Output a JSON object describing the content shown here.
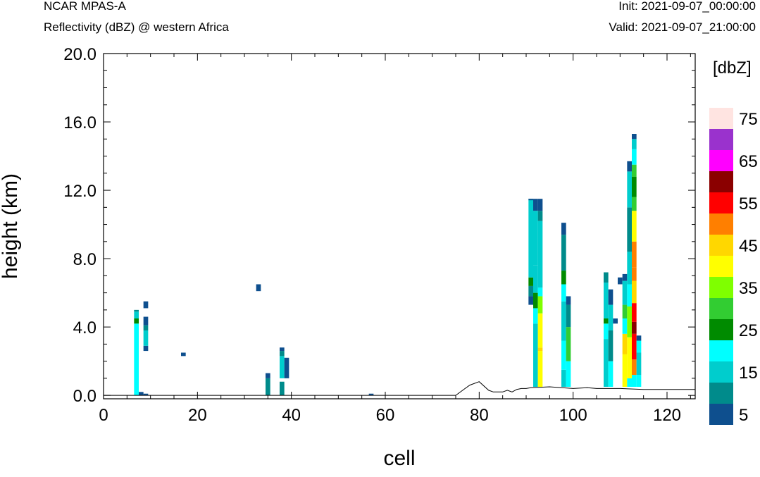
{
  "header": {
    "model": "NCAR MPAS-A",
    "field": "Reflectivity (dBZ) @ western Africa",
    "init": "Init: 2021-09-07_00:00:00",
    "valid": "Valid: 2021-09-07_21:00:00"
  },
  "chart_data": {
    "type": "heatmap",
    "xlabel": "cell",
    "ylabel": "height (km)",
    "xlim": [
      0,
      126
    ],
    "ylim": [
      -0.2,
      20.0
    ],
    "xticks": [
      "0",
      "20",
      "40",
      "60",
      "80",
      "100",
      "120"
    ],
    "yticks": [
      "0.0",
      "4.0",
      "8.0",
      "12.0",
      "16.0",
      "20.0"
    ],
    "grid": false,
    "colorbar": {
      "title": "[dbZ]",
      "labels": [
        "5",
        "15",
        "25",
        "35",
        "45",
        "55",
        "65",
        "75"
      ],
      "levels": [
        5,
        10,
        15,
        20,
        25,
        30,
        35,
        40,
        45,
        50,
        55,
        60,
        65,
        70,
        75
      ],
      "colors": [
        "#0e4f8e",
        "#008b8b",
        "#00cdcd",
        "#00ffff",
        "#008b00",
        "#32cd32",
        "#7fff00",
        "#ffff00",
        "#ffd700",
        "#ff7f00",
        "#ff0000",
        "#8b0000",
        "#ff00ff",
        "#9a32cd",
        "#ffe4e1"
      ]
    },
    "columns": [
      {
        "x": 7,
        "segments": [
          [
            0.0,
            4.2,
            20
          ],
          [
            4.2,
            4.5,
            25
          ],
          [
            4.5,
            4.9,
            15
          ],
          [
            4.9,
            5.0,
            10
          ]
        ]
      },
      {
        "x": 8,
        "segments": [
          [
            0.0,
            0.2,
            5
          ]
        ]
      },
      {
        "x": 9,
        "segments": [
          [
            0.0,
            0.1,
            5
          ],
          [
            2.6,
            2.9,
            5
          ],
          [
            2.9,
            3.8,
            15
          ],
          [
            3.8,
            4.1,
            10
          ],
          [
            4.1,
            4.6,
            5
          ],
          [
            5.1,
            5.5,
            5
          ]
        ]
      },
      {
        "x": 17,
        "segments": [
          [
            2.3,
            2.5,
            5
          ]
        ]
      },
      {
        "x": 33,
        "segments": [
          [
            6.1,
            6.5,
            5
          ]
        ]
      },
      {
        "x": 35,
        "segments": [
          [
            0.0,
            1.0,
            10
          ],
          [
            1.0,
            1.3,
            5
          ]
        ]
      },
      {
        "x": 38,
        "segments": [
          [
            0.0,
            0.8,
            10
          ],
          [
            1.0,
            2.3,
            15
          ],
          [
            2.3,
            2.6,
            10
          ],
          [
            2.6,
            2.8,
            5
          ]
        ]
      },
      {
        "x": 39,
        "segments": [
          [
            1.0,
            2.2,
            5
          ]
        ]
      },
      {
        "x": 57,
        "segments": [
          [
            0.0,
            0.1,
            5
          ]
        ]
      },
      {
        "x": 91,
        "segments": [
          [
            5.3,
            5.8,
            5
          ],
          [
            5.8,
            6.4,
            10
          ],
          [
            6.4,
            6.9,
            25
          ],
          [
            6.9,
            11.5,
            15
          ],
          [
            11.5,
            11.5,
            5
          ]
        ]
      },
      {
        "x": 92,
        "segments": [
          [
            0.5,
            4.2,
            15
          ],
          [
            4.2,
            5.1,
            20
          ],
          [
            5.1,
            6.0,
            25
          ],
          [
            6.0,
            7.6,
            15
          ],
          [
            7.6,
            10.8,
            15
          ],
          [
            10.8,
            11.5,
            5
          ]
        ]
      },
      {
        "x": 93,
        "segments": [
          [
            0.5,
            2.6,
            40
          ],
          [
            2.6,
            2.8,
            45
          ],
          [
            2.8,
            4.8,
            40
          ],
          [
            4.8,
            5.8,
            35
          ],
          [
            5.8,
            6.3,
            20
          ],
          [
            6.3,
            10.2,
            15
          ],
          [
            10.2,
            10.8,
            10
          ],
          [
            10.8,
            11.5,
            5
          ]
        ]
      },
      {
        "x": 98,
        "segments": [
          [
            0.5,
            1.5,
            15
          ],
          [
            1.5,
            3.2,
            20
          ],
          [
            3.2,
            5.5,
            15
          ],
          [
            5.5,
            6.5,
            20
          ],
          [
            6.5,
            7.3,
            25
          ],
          [
            7.3,
            9.4,
            10
          ],
          [
            9.4,
            10.1,
            5
          ]
        ]
      },
      {
        "x": 99,
        "segments": [
          [
            0.5,
            2.0,
            20
          ],
          [
            2.0,
            4.0,
            30
          ],
          [
            4.0,
            5.3,
            10
          ],
          [
            5.3,
            5.8,
            5
          ]
        ]
      },
      {
        "x": 107,
        "segments": [
          [
            0.5,
            3.3,
            15
          ],
          [
            3.3,
            4.2,
            20
          ],
          [
            4.2,
            4.5,
            25
          ],
          [
            4.5,
            6.6,
            15
          ],
          [
            6.6,
            7.2,
            10
          ]
        ]
      },
      {
        "x": 108,
        "segments": [
          [
            0.5,
            2.0,
            20
          ],
          [
            2.0,
            3.8,
            10
          ],
          [
            3.8,
            5.3,
            15
          ],
          [
            5.3,
            6.2,
            5
          ]
        ]
      },
      {
        "x": 109,
        "segments": [
          [
            4.2,
            4.5,
            5
          ]
        ]
      },
      {
        "x": 110,
        "segments": [
          [
            6.5,
            6.9,
            5
          ]
        ]
      },
      {
        "x": 111,
        "segments": [
          [
            0.5,
            2.4,
            40
          ],
          [
            2.4,
            3.6,
            45
          ],
          [
            3.6,
            4.5,
            20
          ],
          [
            4.5,
            5.3,
            30
          ],
          [
            5.3,
            6.7,
            15
          ],
          [
            6.7,
            7.1,
            5
          ]
        ]
      },
      {
        "x": 112,
        "segments": [
          [
            0.5,
            1.0,
            20
          ],
          [
            1.0,
            3.4,
            40
          ],
          [
            3.4,
            5.2,
            35
          ],
          [
            5.2,
            6.5,
            20
          ],
          [
            6.5,
            8.4,
            15
          ],
          [
            8.4,
            11.0,
            10
          ],
          [
            11.0,
            13.1,
            15
          ],
          [
            13.1,
            13.7,
            5
          ]
        ]
      },
      {
        "x": 113,
        "segments": [
          [
            0.5,
            1.2,
            20
          ],
          [
            1.2,
            2.1,
            50
          ],
          [
            2.1,
            3.6,
            55
          ],
          [
            3.6,
            4.3,
            60
          ],
          [
            4.3,
            5.4,
            55
          ],
          [
            5.4,
            6.7,
            45
          ],
          [
            6.7,
            7.5,
            50
          ],
          [
            7.5,
            9.0,
            50
          ],
          [
            9.0,
            10.8,
            40
          ],
          [
            10.8,
            11.6,
            30
          ],
          [
            11.6,
            12.8,
            25
          ],
          [
            12.8,
            13.5,
            30
          ],
          [
            13.5,
            14.4,
            20
          ],
          [
            14.4,
            15.0,
            15
          ],
          [
            15.0,
            15.3,
            5
          ]
        ]
      },
      {
        "x": 114,
        "segments": [
          [
            0.5,
            1.2,
            20
          ],
          [
            1.2,
            2.5,
            15
          ],
          [
            2.5,
            3.2,
            20
          ],
          [
            3.2,
            3.5,
            5
          ]
        ]
      }
    ],
    "terrain": [
      [
        0,
        0
      ],
      [
        75,
        0
      ],
      [
        77,
        0.4
      ],
      [
        78,
        0.6
      ],
      [
        80,
        0.8
      ],
      [
        82,
        0.3
      ],
      [
        83,
        0.2
      ],
      [
        84,
        0.2
      ],
      [
        85,
        0.2
      ],
      [
        86,
        0.3
      ],
      [
        87,
        0.2
      ],
      [
        88,
        0.35
      ],
      [
        89,
        0.4
      ],
      [
        90,
        0.4
      ],
      [
        91,
        0.45
      ],
      [
        95,
        0.5
      ],
      [
        100,
        0.4
      ],
      [
        103,
        0.45
      ],
      [
        105,
        0.4
      ],
      [
        110,
        0.4
      ],
      [
        115,
        0.35
      ],
      [
        120,
        0.35
      ],
      [
        126,
        0.35
      ]
    ]
  }
}
